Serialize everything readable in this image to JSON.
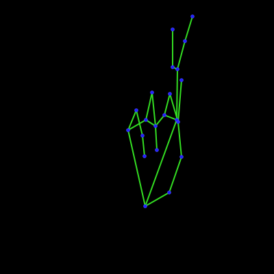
{
  "colors": {
    "background": "#000000",
    "bone": "#33dd22",
    "joint_fill": "#2222ff",
    "joint_stroke": "#4444ff"
  }
}
